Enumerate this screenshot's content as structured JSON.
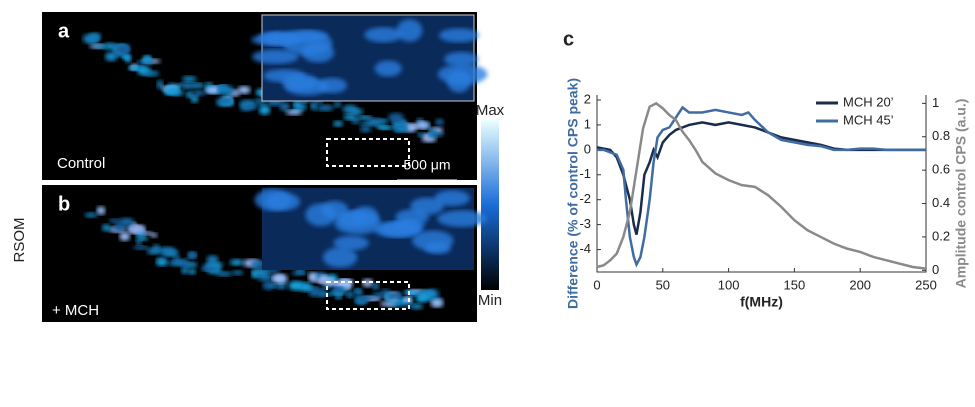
{
  "panels": {
    "a": "a",
    "b": "b",
    "c": "c",
    "label_a": "Control",
    "label_b": "+ MCH",
    "scale_bar": "500 μm",
    "colorbar_max": "Max",
    "colorbar_min": "Min",
    "side_label": "RSOM"
  },
  "chart_data": {
    "type": "line",
    "xlabel": "f(MHz)",
    "ylabel": "Difference (% of control CPS peak)",
    "y2label": "Amplitude control CPS (a.u.)",
    "xlim": [
      0,
      250
    ],
    "xticks": [
      0,
      50,
      100,
      150,
      200,
      250
    ],
    "ylim": [
      -4.9,
      2.2
    ],
    "yticks": [
      -4,
      -3,
      -2,
      -1,
      0,
      1,
      2
    ],
    "y2lim": [
      -0.01,
      1.05
    ],
    "y2ticks": [
      0,
      0.2,
      0.4,
      0.6,
      0.8,
      1
    ],
    "legend": "upper right",
    "series": [
      {
        "name": "MCH 20’",
        "color": "#1b2b4b",
        "x": [
          0,
          5,
          10,
          15,
          20,
          25,
          28,
          30,
          33,
          36,
          40,
          43,
          46,
          50,
          55,
          60,
          65,
          70,
          80,
          90,
          100,
          110,
          120,
          130,
          140,
          150,
          160,
          170,
          180,
          190,
          200,
          210,
          220,
          230,
          240,
          250
        ],
        "values": [
          0.1,
          0.05,
          0,
          -0.3,
          -1.0,
          -2.0,
          -3.0,
          -3.4,
          -2.5,
          -1.0,
          -0.5,
          0.0,
          -0.3,
          0.3,
          0.6,
          0.8,
          0.9,
          1.0,
          1.1,
          1.0,
          1.1,
          1.0,
          0.9,
          0.7,
          0.5,
          0.4,
          0.3,
          0.2,
          0.05,
          0,
          0,
          0,
          0,
          0,
          0,
          0
        ]
      },
      {
        "name": "MCH 45’",
        "color": "#3f6ca3",
        "x": [
          0,
          5,
          10,
          15,
          20,
          22,
          25,
          28,
          30,
          33,
          36,
          40,
          43,
          46,
          50,
          55,
          60,
          65,
          70,
          80,
          90,
          100,
          110,
          115,
          120,
          130,
          140,
          150,
          160,
          170,
          180,
          190,
          200,
          210,
          220,
          230,
          240,
          250
        ],
        "values": [
          0,
          0,
          -0.1,
          -0.2,
          -0.8,
          -2.0,
          -3.5,
          -4.3,
          -4.6,
          -4.3,
          -3.5,
          -2.0,
          -0.5,
          0.5,
          0.8,
          0.9,
          1.3,
          1.7,
          1.5,
          1.5,
          1.6,
          1.5,
          1.4,
          1.5,
          1.2,
          0.7,
          0.4,
          0.3,
          0.2,
          0.15,
          0,
          0,
          0.05,
          0.05,
          0,
          0,
          0,
          0
        ]
      },
      {
        "color": "#8a8a8a",
        "axis": "y2",
        "x": [
          0,
          5,
          10,
          15,
          20,
          25,
          30,
          35,
          40,
          45,
          50,
          55,
          60,
          65,
          70,
          75,
          80,
          90,
          100,
          110,
          120,
          130,
          140,
          150,
          160,
          170,
          180,
          190,
          200,
          210,
          220,
          230,
          240,
          250
        ],
        "values": [
          0.02,
          0.03,
          0.06,
          0.1,
          0.2,
          0.35,
          0.6,
          0.85,
          0.98,
          1.0,
          0.97,
          0.93,
          0.9,
          0.83,
          0.78,
          0.72,
          0.65,
          0.58,
          0.54,
          0.51,
          0.5,
          0.45,
          0.38,
          0.3,
          0.24,
          0.2,
          0.16,
          0.13,
          0.11,
          0.08,
          0.06,
          0.04,
          0.02,
          0.01
        ]
      }
    ]
  }
}
